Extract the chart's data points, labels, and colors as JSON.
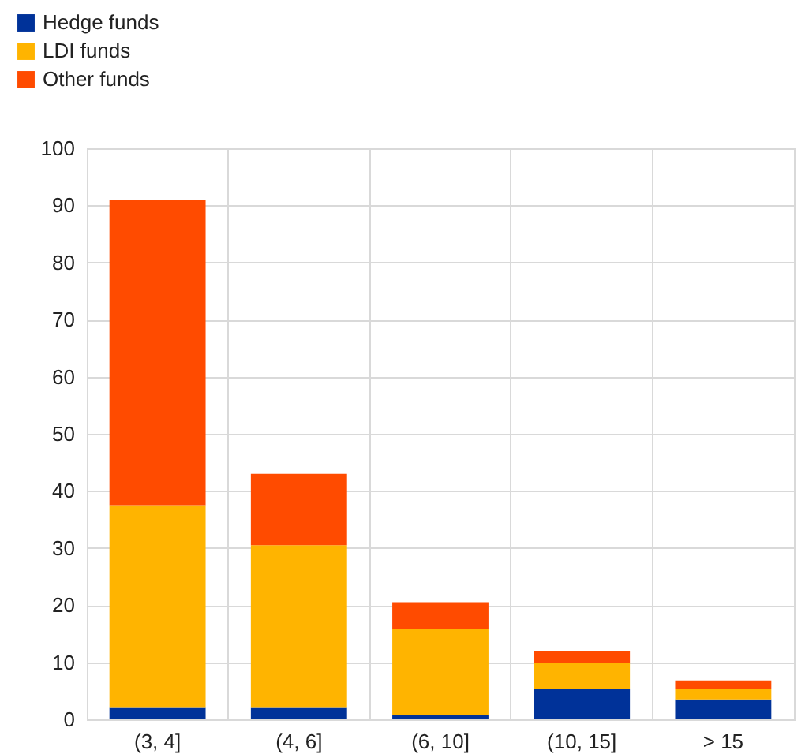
{
  "chart_data": {
    "type": "bar",
    "stacked": true,
    "categories": [
      "(3, 4]",
      "(4, 6]",
      "(6, 10]",
      "(10, 15]",
      "> 15"
    ],
    "series": [
      {
        "name": "Hedge funds",
        "color": "#003299",
        "values": [
          2,
          2,
          0.8,
          5.3,
          3.5
        ]
      },
      {
        "name": "LDI funds",
        "color": "#ffb400",
        "values": [
          35.5,
          28.5,
          15,
          4.5,
          1.8
        ]
      },
      {
        "name": "Other funds",
        "color": "#ff4b00",
        "values": [
          53.5,
          12.5,
          4.7,
          2.2,
          1.5
        ]
      }
    ],
    "ylim": [
      0,
      100
    ],
    "yticks": [
      0,
      10,
      20,
      30,
      40,
      50,
      60,
      70,
      80,
      90,
      100
    ],
    "grid": true,
    "legend": "top left"
  }
}
